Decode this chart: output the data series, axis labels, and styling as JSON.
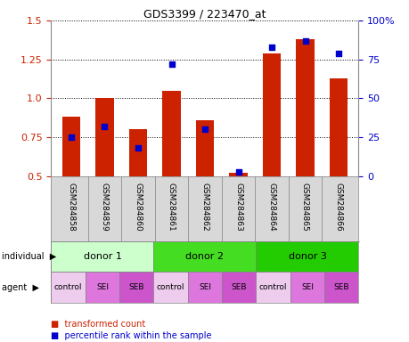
{
  "title": "GDS3399 / 223470_at",
  "samples": [
    "GSM284858",
    "GSM284859",
    "GSM284860",
    "GSM284861",
    "GSM284862",
    "GSM284863",
    "GSM284864",
    "GSM284865",
    "GSM284866"
  ],
  "transformed_count": [
    0.88,
    1.0,
    0.8,
    1.05,
    0.86,
    0.52,
    1.29,
    1.38,
    1.13
  ],
  "percentile_rank": [
    25,
    32,
    18,
    72,
    30,
    3,
    83,
    87,
    79
  ],
  "ylim_left": [
    0.5,
    1.5
  ],
  "ylim_right": [
    0,
    100
  ],
  "yticks_left": [
    0.5,
    0.75,
    1.0,
    1.25,
    1.5
  ],
  "yticks_right": [
    0,
    25,
    50,
    75,
    100
  ],
  "bar_color": "#cc2200",
  "dot_color": "#0000cc",
  "sample_bg_color": "#d8d8d8",
  "indiv_groups": [
    {
      "label": "donor 1",
      "start": 0,
      "end": 3,
      "color": "#ccffcc"
    },
    {
      "label": "donor 2",
      "start": 3,
      "end": 6,
      "color": "#44dd22"
    },
    {
      "label": "donor 3",
      "start": 6,
      "end": 9,
      "color": "#22cc00"
    }
  ],
  "agent_labels": [
    "control",
    "SEI",
    "SEB",
    "control",
    "SEI",
    "SEB",
    "control",
    "SEI",
    "SEB"
  ],
  "agent_colors": [
    "#eeccee",
    "#dd77dd",
    "#cc55cc",
    "#eeccee",
    "#dd77dd",
    "#cc55cc",
    "#eeccee",
    "#dd77dd",
    "#cc55cc"
  ],
  "legend_red": "transformed count",
  "legend_blue": "percentile rank within the sample"
}
